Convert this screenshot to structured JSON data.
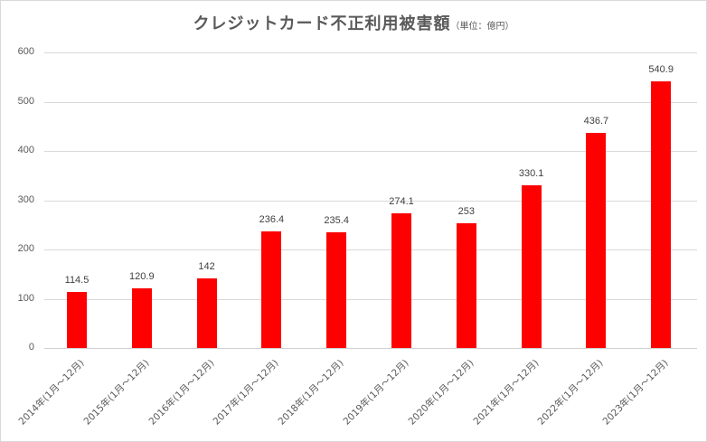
{
  "chart": {
    "title": "クレジットカード不正利用被害額",
    "unit_label": "（単位：億円）"
  },
  "chart_data": {
    "type": "bar",
    "title": "クレジットカード不正利用被害額（単位：億円）",
    "xlabel": "",
    "ylabel": "",
    "categories": [
      "2014年(1月～12月)",
      "2015年(1月～12月)",
      "2016年(1月～12月)",
      "2017年(1月～12月)",
      "2018年(1月～12月)",
      "2019年(1月～12月)",
      "2020年(1月～12月)",
      "2021年(1月～12月)",
      "2022年(1月～12月)",
      "2023年(1月～12月)"
    ],
    "values": [
      114.5,
      120.9,
      142,
      236.4,
      235.4,
      274.1,
      253,
      330.1,
      436.7,
      540.9
    ],
    "data_labels": [
      "114.5",
      "120.9",
      "142",
      "236.4",
      "235.4",
      "274.1",
      "253",
      "330.1",
      "436.7",
      "540.9"
    ],
    "ylim": [
      0,
      600
    ],
    "yticks": [
      "0",
      "100",
      "200",
      "300",
      "400",
      "500",
      "600"
    ],
    "grid": true,
    "legend": null,
    "bar_color": "#ff0000"
  }
}
